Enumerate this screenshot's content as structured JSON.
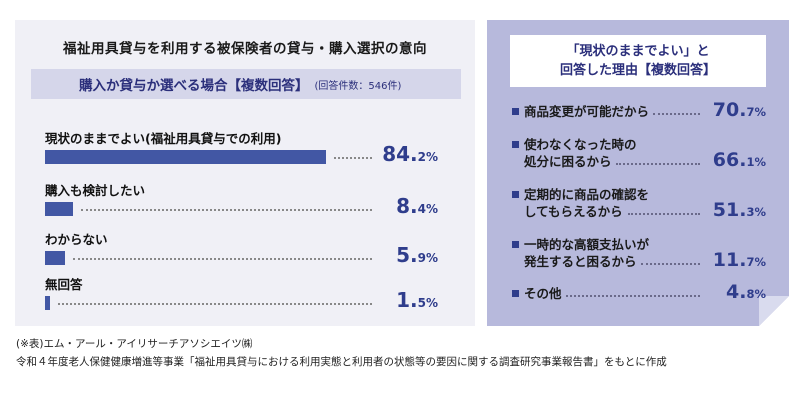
{
  "left": {
    "title": "福祉用具貸与を利用する被保険者の貸与・購入選択の意向",
    "subhead": "購入か貸与か選べる場合【複数回答】",
    "subhead_note": "(回答件数：546件)"
  },
  "right": {
    "head_line1": "「現状のままでよい」と",
    "head_line2": "回答した理由【複数回答】"
  },
  "chart_data": [
    {
      "type": "bar",
      "orientation": "horizontal",
      "unit": "%",
      "title": "福祉用具貸与を利用する被保険者の貸与・購入選択の意向",
      "subtitle": "購入か貸与か選べる場合【複数回答】(回答件数：546件)",
      "categories": [
        "現状のままでよい(福祉用具貸与での利用)",
        "購入も検討したい",
        "わからない",
        "無回答"
      ],
      "values": [
        84.2,
        8.4,
        5.9,
        1.5
      ],
      "xlim": [
        0,
        100
      ],
      "value_int": [
        "84.",
        "8.",
        "5.",
        "1."
      ],
      "value_dec": [
        "2%",
        "4%",
        "9%",
        "5%"
      ],
      "color": "#4257a4"
    },
    {
      "type": "table",
      "unit": "%",
      "title": "「現状のままでよい」と回答した理由【複数回答】",
      "categories": [
        "商品変更が可能だから",
        "使わなくなった時の処分に困るから",
        "定期的に商品の確認をしてもらえるから",
        "一時的な高額支払いが発生すると困るから",
        "その他"
      ],
      "label_lines": [
        [
          "商品変更が可能だから"
        ],
        [
          "使わなくなった時の",
          "処分に困るから"
        ],
        [
          "定期的に商品の確認を",
          "してもらえるから"
        ],
        [
          "一時的な高額支払いが",
          "発生すると困るから"
        ],
        [
          "その他"
        ]
      ],
      "values": [
        70.7,
        66.1,
        51.3,
        11.7,
        4.8
      ],
      "value_int": [
        "70.",
        "66.",
        "51.",
        "11.",
        "4."
      ],
      "value_dec": [
        "7%",
        "1%",
        "3%",
        "7%",
        "8%"
      ]
    }
  ],
  "footer": {
    "line1": "(※表)エム・アール・アイリサーチアソシエイツ㈱",
    "line2": "令和４年度老人保健健康増進等事業「福祉用具貸与における利用実態と利用者の状態等の要因に関する調査研究事業報告書」をもとに作成"
  },
  "colors": {
    "bar": "#4257a4",
    "accent_text": "#2f3d8c",
    "left_bg": "#f0f0f6",
    "subhead_bg": "#d5d6ea",
    "right_bg": "#b7b9dc"
  }
}
